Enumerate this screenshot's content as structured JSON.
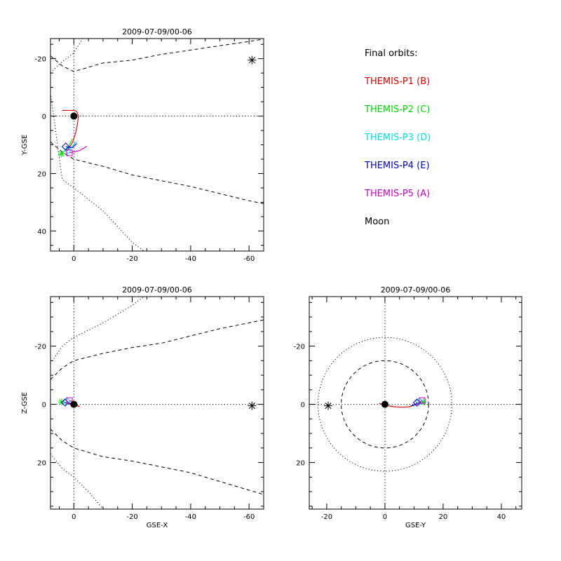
{
  "legend": {
    "header": "Final orbits:",
    "entries": [
      {
        "label": "THEMIS-P1 (B)",
        "color": "#dd0000"
      },
      {
        "label": "THEMIS-P2 (C)",
        "color": "#00dd00"
      },
      {
        "label": "THEMIS-P3 (D)",
        "color": "#00e0e0"
      },
      {
        "label": "THEMIS-P4 (E)",
        "color": "#0000cc"
      },
      {
        "label": "THEMIS-P5 (A)",
        "color": "#cc00cc"
      },
      {
        "label": "Moon",
        "color": "#000000"
      }
    ]
  },
  "chart_data": [
    {
      "type": "line",
      "title": "2009-07-09/00-06",
      "xlabel": "",
      "ylabel": "Y-GSE",
      "xlim": [
        8,
        -65
      ],
      "ylim": [
        -27,
        47
      ],
      "xticks": [
        0,
        -20,
        -40,
        -60
      ],
      "yticks": [
        -20,
        0,
        20,
        40
      ],
      "earth": [
        0,
        0
      ],
      "moon": [
        -61,
        -19.5
      ],
      "boundaries": [
        {
          "style": "dashed",
          "points": [
            [
              8,
              -21
            ],
            [
              4,
              -17.5
            ],
            [
              0,
              -15.5
            ],
            [
              -10,
              -18.5
            ],
            [
              -20,
              -19.5
            ],
            [
              -30,
              -21.5
            ],
            [
              -40,
              -23
            ],
            [
              -50,
              -24.5
            ],
            [
              -60,
              -26
            ],
            [
              -65,
              -26.8
            ]
          ]
        },
        {
          "style": "dashed",
          "points": [
            [
              8,
              9
            ],
            [
              4,
              12.5
            ],
            [
              0,
              15
            ],
            [
              -10,
              17.5
            ],
            [
              -20,
              20.5
            ],
            [
              -30,
              22.5
            ],
            [
              -40,
              24.5
            ],
            [
              -50,
              27
            ],
            [
              -60,
              29.5
            ],
            [
              -65,
              30.5
            ]
          ]
        },
        {
          "style": "dotted",
          "points": [
            [
              8,
              -15
            ],
            [
              4,
              -19
            ],
            [
              0,
              -22
            ],
            [
              -3,
              -27
            ]
          ]
        },
        {
          "style": "dotted",
          "points": [
            [
              8,
              -8
            ],
            [
              4,
              22
            ],
            [
              0,
              25
            ],
            [
              -10,
              33
            ],
            [
              -20,
              44
            ],
            [
              -24,
              47
            ]
          ]
        }
      ],
      "series": [
        {
          "color": "#dd0000",
          "points": [
            [
              4,
              -2
            ],
            [
              0,
              -2
            ],
            [
              -1,
              -1.6
            ],
            [
              -1.6,
              0
            ],
            [
              -1.2,
              3
            ],
            [
              -0.6,
              6
            ],
            [
              0.4,
              9
            ],
            [
              1.6,
              11
            ],
            [
              2.5,
              12.3
            ]
          ],
          "marker": [
            2.5,
            12.3
          ]
        },
        {
          "color": "#00dd00",
          "points": [
            [
              0.5,
              8
            ],
            [
              1.5,
              10
            ],
            [
              2.5,
              11.5
            ],
            [
              4.2,
              13.2
            ]
          ],
          "marker": [
            4.2,
            13.2
          ]
        },
        {
          "color": "#00e0e0",
          "points": [
            [
              -0.8,
              9
            ],
            [
              0.5,
              10.5
            ],
            [
              2,
              11.8
            ]
          ],
          "marker": [
            2,
            11.8
          ]
        },
        {
          "color": "#0000cc",
          "points": [
            [
              -1,
              9.5
            ],
            [
              0.5,
              11
            ],
            [
              2.8,
              10.6
            ]
          ],
          "marker": [
            2.8,
            10.6
          ]
        },
        {
          "color": "#cc00cc",
          "points": [
            [
              -4.5,
              10.5
            ],
            [
              -2,
              12
            ],
            [
              1.5,
              12.8
            ]
          ],
          "marker": [
            1.5,
            12.8
          ]
        }
      ]
    },
    {
      "type": "line",
      "title": "2009-07-09/00-06",
      "xlabel": "GSE-X",
      "ylabel": "Z-GSE",
      "xlim": [
        8,
        -65
      ],
      "ylim": [
        -37,
        36
      ],
      "xticks": [
        0,
        -20,
        -40,
        -60
      ],
      "yticks": [
        20,
        0,
        -20
      ],
      "earth": [
        0,
        0
      ],
      "moon": [
        -61,
        0.5
      ],
      "boundaries": [
        {
          "style": "dashed",
          "points": [
            [
              8,
              8.5
            ],
            [
              4,
              12.5
            ],
            [
              0,
              15
            ],
            [
              -10,
              18
            ],
            [
              -20,
              19.5
            ],
            [
              -30,
              21.5
            ],
            [
              -40,
              23.5
            ],
            [
              -50,
              26.5
            ],
            [
              -60,
              29.5
            ],
            [
              -65,
              31
            ]
          ]
        },
        {
          "style": "dashed",
          "points": [
            [
              8,
              -8.5
            ],
            [
              4,
              -12.5
            ],
            [
              0,
              -15
            ],
            [
              -10,
              -17.5
            ],
            [
              -20,
              -19.5
            ],
            [
              -30,
              -21
            ],
            [
              -40,
              -23.5
            ],
            [
              -50,
              -26
            ],
            [
              -60,
              -28
            ],
            [
              -65,
              -29
            ]
          ]
        },
        {
          "style": "dotted",
          "points": [
            [
              8,
              17
            ],
            [
              4,
              22
            ],
            [
              0,
              25
            ],
            [
              -5,
              30
            ],
            [
              -10,
              36
            ]
          ]
        },
        {
          "style": "dotted",
          "points": [
            [
              8,
              -14
            ],
            [
              4,
              -20
            ],
            [
              0,
              -23
            ],
            [
              -10,
              -28
            ],
            [
              -20,
              -34
            ],
            [
              -24,
              -37
            ]
          ]
        }
      ],
      "series": [
        {
          "color": "#dd0000",
          "points": [
            [
              1,
              -0.5
            ],
            [
              0,
              0
            ],
            [
              -1,
              0.5
            ],
            [
              -2,
              0.8
            ],
            [
              -1,
              0.3
            ],
            [
              0.5,
              -0.3
            ],
            [
              2,
              -0.6
            ]
          ],
          "marker": [
            2,
            -0.6
          ]
        },
        {
          "color": "#00dd00",
          "points": [
            [
              1,
              0
            ],
            [
              2.5,
              -0.5
            ],
            [
              4.2,
              -0.8
            ]
          ],
          "marker": [
            4.2,
            -0.8
          ]
        },
        {
          "color": "#00e0e0",
          "points": [
            [
              0,
              0.3
            ],
            [
              1.5,
              -0.5
            ],
            [
              2.5,
              -1
            ]
          ],
          "marker": [
            2.5,
            -1
          ]
        },
        {
          "color": "#0000cc",
          "points": [
            [
              -0.5,
              0.5
            ],
            [
              1,
              0
            ],
            [
              3,
              -0.6
            ]
          ],
          "marker": [
            3,
            -0.6
          ]
        },
        {
          "color": "#cc00cc",
          "points": [
            [
              -1,
              -0.5
            ],
            [
              0.5,
              -1
            ],
            [
              1.5,
              -1.3
            ]
          ],
          "marker": [
            1.5,
            -1.3
          ]
        }
      ]
    },
    {
      "type": "line",
      "title": "2009-07-09/00-06",
      "xlabel": "GSE-Y",
      "ylabel": "",
      "xlim": [
        -26,
        47
      ],
      "ylim": [
        -37,
        36
      ],
      "xticks": [
        -20,
        0,
        20,
        40
      ],
      "yticks": [
        20,
        0,
        -20
      ],
      "earth": [
        0,
        0
      ],
      "moon": [
        -19.5,
        0.5
      ],
      "circles": [
        {
          "style": "dashed",
          "r": 15
        },
        {
          "style": "dotted",
          "r": 23
        }
      ],
      "series": [
        {
          "color": "#dd0000",
          "points": [
            [
              -2,
              -0.3
            ],
            [
              0,
              0.3
            ],
            [
              3,
              0.8
            ],
            [
              6,
              1
            ],
            [
              8.5,
              0.8
            ],
            [
              10.5,
              0.2
            ],
            [
              12.3,
              -0.6
            ]
          ],
          "marker": [
            12.3,
            -0.6
          ]
        },
        {
          "color": "#00dd00",
          "points": [
            [
              10,
              0.2
            ],
            [
              11.8,
              -0.3
            ],
            [
              13.3,
              -0.8
            ]
          ],
          "marker": [
            13.3,
            -0.8
          ]
        },
        {
          "color": "#00e0e0",
          "points": [
            [
              9.8,
              0.6
            ],
            [
              11,
              -0.2
            ],
            [
              11.8,
              -1
            ]
          ],
          "marker": [
            11.8,
            -1
          ]
        },
        {
          "color": "#0000cc",
          "points": [
            [
              9,
              0.5
            ],
            [
              10.5,
              0
            ],
            [
              11,
              -0.6
            ]
          ],
          "marker": [
            11,
            -0.6
          ]
        },
        {
          "color": "#cc00cc",
          "points": [
            [
              10.5,
              0.4
            ],
            [
              11.8,
              -0.6
            ],
            [
              12.8,
              -1.3
            ]
          ],
          "marker": [
            12.8,
            -1.3
          ]
        }
      ]
    }
  ]
}
